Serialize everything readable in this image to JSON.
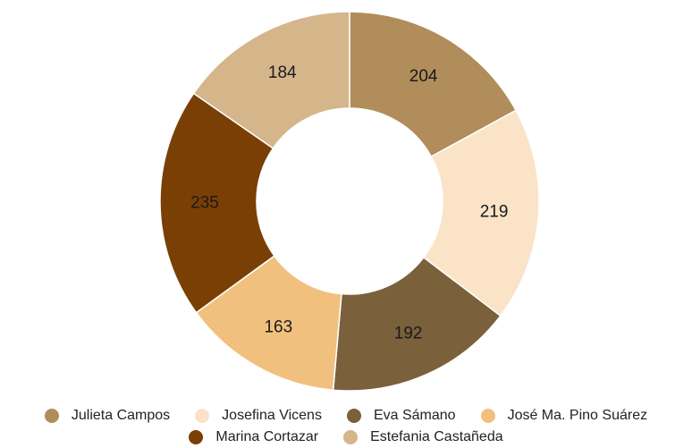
{
  "chart_data": {
    "type": "pie",
    "variant": "donut",
    "categories": [
      "Julieta Campos",
      "Josefina Vicens",
      "Eva Sámano",
      "José Ma. Pino Suárez",
      "Marina Cortazar",
      "Estefania Castañeda"
    ],
    "values": [
      204,
      219,
      192,
      163,
      235,
      184
    ],
    "colors": [
      "#b08d5a",
      "#fbe3c8",
      "#7b603c",
      "#f2c07e",
      "#7a3f05",
      "#d5b68b"
    ],
    "legend_position": "bottom",
    "start_angle": "top",
    "direction": "clockwise"
  }
}
